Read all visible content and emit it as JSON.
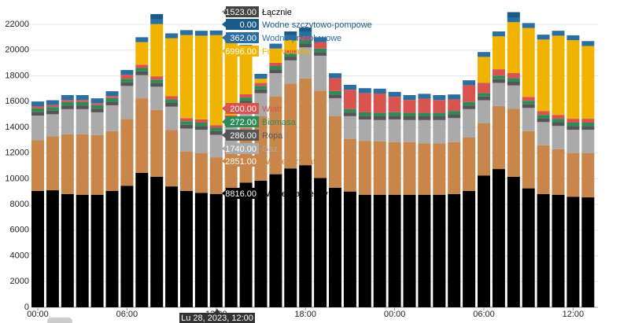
{
  "chart_data": {
    "type": "stacked-bar",
    "categories": [
      "00:00",
      null,
      null,
      null,
      null,
      null,
      "06:00",
      null,
      null,
      null,
      null,
      null,
      "12:00",
      null,
      null,
      null,
      null,
      null,
      "18:00",
      null,
      null,
      null,
      null,
      null,
      "00:00",
      null,
      null,
      null,
      null,
      null,
      "06:00",
      null,
      null,
      null,
      null,
      null,
      "12:00",
      null
    ],
    "ylim": [
      0,
      22000
    ],
    "yticks": [
      0,
      2000,
      4000,
      6000,
      8000,
      10000,
      12000,
      14000,
      16000,
      18000,
      20000,
      22000
    ],
    "grid": true,
    "series": [
      {
        "name": "Węgiel kamienny",
        "color": "#000000",
        "values": [
          9050,
          9100,
          8800,
          8750,
          8750,
          9050,
          9450,
          10450,
          10150,
          9400,
          9050,
          8900,
          8816,
          9000,
          9700,
          9850,
          10350,
          10800,
          11050,
          10050,
          9300,
          9000,
          8750,
          8750,
          8750,
          8750,
          8750,
          8750,
          8800,
          9050,
          10250,
          10750,
          10150,
          9250,
          8800,
          8750,
          8600,
          8550
        ]
      },
      {
        "name": "Węgiel brunatny",
        "color": "#c8864a",
        "values": [
          3950,
          4200,
          4650,
          4700,
          4650,
          4650,
          5200,
          5800,
          5200,
          4400,
          3050,
          3100,
          2851,
          3300,
          4250,
          5000,
          6050,
          6600,
          6750,
          6800,
          5550,
          4100,
          4200,
          4150,
          4100,
          4100,
          4000,
          4000,
          4050,
          4150,
          4050,
          4900,
          5300,
          4450,
          3800,
          3550,
          3400,
          3450
        ]
      },
      {
        "name": "Gaz",
        "color": "#aaaaaa",
        "values": [
          1910,
          1710,
          1960,
          1960,
          1760,
          2010,
          2560,
          1800,
          1800,
          1800,
          1800,
          1800,
          1740,
          1800,
          1800,
          1800,
          1800,
          1800,
          2410,
          2710,
          1410,
          1760,
          1650,
          1660,
          1760,
          1710,
          1810,
          1810,
          1860,
          2210,
          1800,
          1800,
          1800,
          1800,
          1800,
          1800,
          1800,
          1800
        ]
      },
      {
        "name": "Ropa",
        "color": "#555555",
        "values": [
          290,
          290,
          290,
          290,
          290,
          290,
          290,
          290,
          290,
          290,
          290,
          290,
          286,
          290,
          290,
          290,
          290,
          290,
          290,
          290,
          290,
          290,
          290,
          290,
          290,
          290,
          290,
          290,
          290,
          290,
          290,
          290,
          290,
          290,
          290,
          290,
          290,
          290
        ]
      },
      {
        "name": "Biomasa",
        "color": "#2e8b57",
        "values": [
          270,
          270,
          270,
          270,
          270,
          270,
          270,
          270,
          270,
          270,
          270,
          270,
          272,
          270,
          270,
          270,
          270,
          270,
          270,
          270,
          270,
          270,
          270,
          270,
          270,
          270,
          270,
          270,
          270,
          270,
          270,
          270,
          270,
          270,
          270,
          270,
          270,
          270
        ]
      },
      {
        "name": "Wiatr",
        "color": "#d9534f",
        "values": [
          150,
          150,
          150,
          150,
          150,
          150,
          300,
          250,
          250,
          250,
          250,
          250,
          200,
          250,
          250,
          250,
          250,
          250,
          300,
          500,
          1000,
          1500,
          1500,
          1500,
          1200,
          1000,
          1100,
          1000,
          900,
          1300,
          800,
          500,
          400,
          300,
          300,
          300,
          300,
          300
        ]
      },
      {
        "name": "Fotowoltaika",
        "color": "#f0b400",
        "values": [
          0,
          0,
          0,
          0,
          0,
          0,
          0,
          1760,
          4060,
          4510,
          6460,
          6510,
          6996,
          5760,
          3460,
          310,
          1110,
          760,
          0,
          0,
          0,
          0,
          0,
          0,
          0,
          0,
          0,
          0,
          0,
          0,
          2010,
          2560,
          3960,
          5360,
          5560,
          6160,
          6110,
          5660
        ]
      },
      {
        "name": "Wodne przepływowe",
        "color": "#2b6ea0",
        "values": [
          380,
          380,
          380,
          380,
          380,
          380,
          380,
          380,
          380,
          380,
          380,
          380,
          362,
          380,
          380,
          380,
          380,
          380,
          380,
          380,
          380,
          380,
          380,
          380,
          380,
          380,
          380,
          380,
          380,
          380,
          380,
          380,
          380,
          380,
          380,
          380,
          380,
          380
        ]
      },
      {
        "name": "Wodne szczytowo-pompowe",
        "color": "#1a5a86",
        "values": [
          0,
          0,
          0,
          0,
          0,
          0,
          0,
          0,
          400,
          0,
          0,
          0,
          0,
          0,
          0,
          0,
          0,
          300,
          300,
          0,
          0,
          0,
          0,
          0,
          0,
          0,
          0,
          0,
          0,
          0,
          0,
          0,
          400,
          0,
          0,
          0,
          0,
          0
        ]
      }
    ]
  },
  "tooltip": {
    "title": "Lu 28, 2023, 12:00",
    "items": [
      {
        "name": "Łącznie",
        "label": "21523.00",
        "color": "#444444"
      },
      {
        "name": "Wodne szczytowo-pompowe",
        "label": "0.00",
        "color": "#1a5a86"
      },
      {
        "name": "Wodne przepływowe",
        "label": "362.00",
        "color": "#2b6ea0"
      },
      {
        "name": "Fotowoltaika",
        "label": "6996.00",
        "color": "#f0b400"
      },
      {
        "name": "Wiatr",
        "label": "200.00",
        "color": "#d9534f"
      },
      {
        "name": "Biomasa",
        "label": "272.00",
        "color": "#2e8b57"
      },
      {
        "name": "Ropa",
        "label": "286.00",
        "color": "#555555"
      },
      {
        "name": "Gaz",
        "label": "1740.00",
        "color": "#aaaaaa"
      },
      {
        "name": "Węgiel brunatny",
        "label": "2851.00",
        "color": "#c8864a"
      },
      {
        "name": "Węgiel kamienny",
        "label": "8816.00",
        "color": "#000000"
      }
    ]
  }
}
